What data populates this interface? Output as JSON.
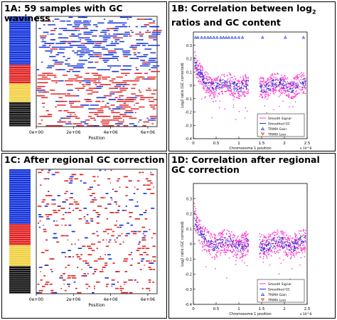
{
  "panels": [
    {
      "id": "1A",
      "title": "1A: 59 samples with GC waviness"
    },
    {
      "id": "1B",
      "title_pre": "1B: Correlation between log",
      "title_sub": "2",
      "title_post": " ratios and GC content"
    },
    {
      "id": "1C",
      "title": "1C: After regional GC correction"
    },
    {
      "id": "1D",
      "title": "1D: Correlation after regional GC correction"
    }
  ],
  "colors": {
    "blue": "#1030d8",
    "red": "#e02020",
    "magenta": "#ff30c8",
    "yellow": "#f0d040",
    "black": "#101010",
    "gray": "#b0b0b0"
  },
  "chart_data": [
    {
      "type": "heatmap",
      "panel": "1A",
      "xlabel": "Position",
      "x_ticks": [
        "0e+00",
        "2e+06",
        "4e+06",
        "6e+06"
      ],
      "x_tick_values": [
        0,
        2000000,
        4000000,
        6000000
      ],
      "xlim": [
        0,
        6500000
      ],
      "sample_count": 59,
      "sample_groups": [
        {
          "color": "blue",
          "count": 26
        },
        {
          "color": "red",
          "count": 10
        },
        {
          "color": "yellow",
          "count": 10
        },
        {
          "color": "black",
          "count": 13
        }
      ]
    },
    {
      "type": "scatter",
      "panel": "1B",
      "xlabel": "Chromosome 1 position",
      "ylabel": "Log2 ratio (GC corrected)",
      "x_ticks": [
        "0",
        "0.5",
        "1",
        "1.5",
        "2",
        "2.5"
      ],
      "x_tick_values": [
        0,
        0.5,
        1,
        1.5,
        2,
        2.5
      ],
      "x_multiplier": "x 10^8",
      "xlim": [
        0,
        2.5
      ],
      "y_ticks": [
        "0.3",
        "0.2",
        "0.1",
        "0",
        "-0.1",
        "-0.2",
        "-0.3",
        "-0.4"
      ],
      "y_tick_values": [
        0.3,
        0.2,
        0.1,
        0,
        -0.1,
        -0.2,
        -0.3,
        -0.4
      ],
      "ylim": [
        -0.4,
        0.4
      ],
      "legend": [
        "Smooth Signal",
        "Smoothed GC",
        "TRIMA Gain",
        "TRIMA Loss"
      ],
      "legend_placement": "bottom-right"
    },
    {
      "type": "heatmap",
      "panel": "1C",
      "xlabel": "Position",
      "x_ticks": [
        "0e+00",
        "2e+06",
        "4e+06",
        "6e+06"
      ],
      "x_tick_values": [
        0,
        2000000,
        4000000,
        6000000
      ],
      "xlim": [
        0,
        6500000
      ],
      "sample_count": 59
    },
    {
      "type": "scatter",
      "panel": "1D",
      "xlabel": "Chromosome 1 position",
      "ylabel": "Log2 ratio (GC corrected)",
      "x_ticks": [
        "0",
        "0.5",
        "1",
        "1.5",
        "2",
        "2.5"
      ],
      "x_tick_values": [
        0,
        0.5,
        1,
        1.5,
        2,
        2.5
      ],
      "x_multiplier": "x 10^8",
      "xlim": [
        0,
        2.5
      ],
      "y_ticks": [
        "0.3",
        "0.2",
        "0.1",
        "0",
        "-0.1",
        "-0.2",
        "-0.3",
        "-0.4"
      ],
      "y_tick_values": [
        0.3,
        0.2,
        0.1,
        0,
        -0.1,
        -0.2,
        -0.3,
        -0.4
      ],
      "ylim": [
        -0.4,
        0.4
      ],
      "legend": [
        "Smooth Signal",
        "Smoothed GC",
        "TRIMA Gain",
        "TRIMA Loss"
      ],
      "legend_placement": "bottom-right"
    }
  ]
}
